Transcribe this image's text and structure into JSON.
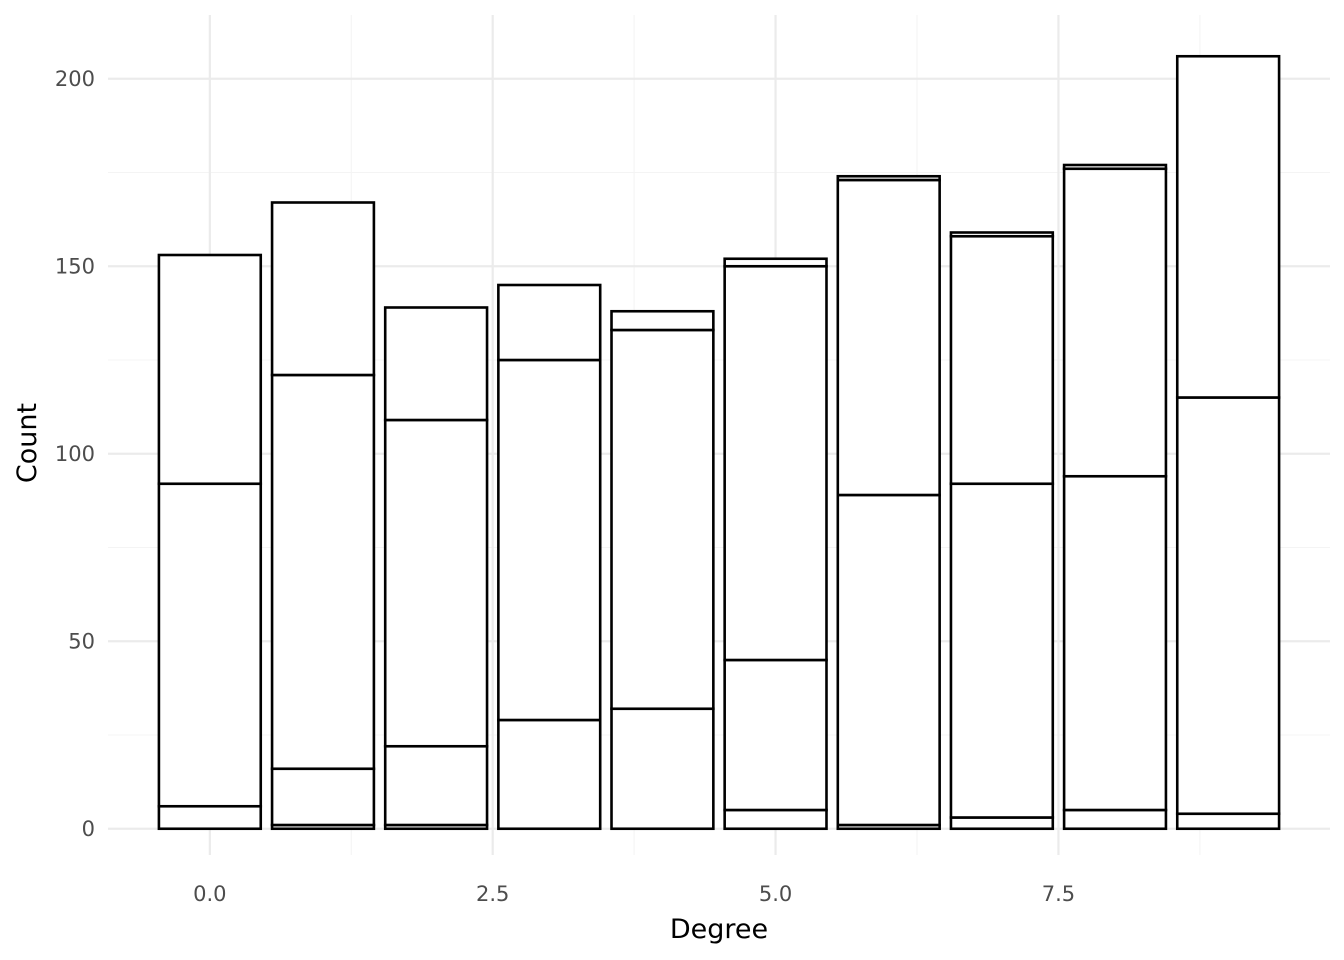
{
  "chart_data": {
    "type": "bar",
    "stacked": true,
    "xlabel": "Degree",
    "ylabel": "Count",
    "xlim": [
      -0.9,
      9.9
    ],
    "ylim": [
      -7,
      217
    ],
    "x_ticks": [
      0,
      2.5,
      5,
      7.5
    ],
    "x_tick_labels": [
      "0.0",
      "2.5",
      "5.0",
      "7.5"
    ],
    "y_ticks": [
      0,
      50,
      100,
      150,
      200
    ],
    "y_tick_labels": [
      "0",
      "50",
      "100",
      "150",
      "200"
    ],
    "grid": true,
    "legend": "none",
    "bar_fill": "#ffffff",
    "bar_outline": "#000000",
    "bar_width_data": 0.9,
    "categories": [
      0,
      1,
      2,
      3,
      4,
      5,
      6,
      7,
      8,
      9
    ],
    "stack_boundaries": [
      [
        0,
        6,
        92,
        153
      ],
      [
        0,
        1,
        16,
        121,
        167
      ],
      [
        0,
        1,
        22,
        109,
        139
      ],
      [
        0,
        29,
        125,
        145
      ],
      [
        0,
        32,
        133,
        138
      ],
      [
        0,
        5,
        45,
        150,
        152
      ],
      [
        0,
        1,
        89,
        173,
        174
      ],
      [
        0,
        3,
        92,
        158,
        159
      ],
      [
        0,
        5,
        94,
        176,
        177
      ],
      [
        0,
        4,
        115,
        206
      ]
    ],
    "totals": [
      153,
      167,
      139,
      145,
      138,
      152,
      174,
      159,
      177,
      206
    ]
  }
}
